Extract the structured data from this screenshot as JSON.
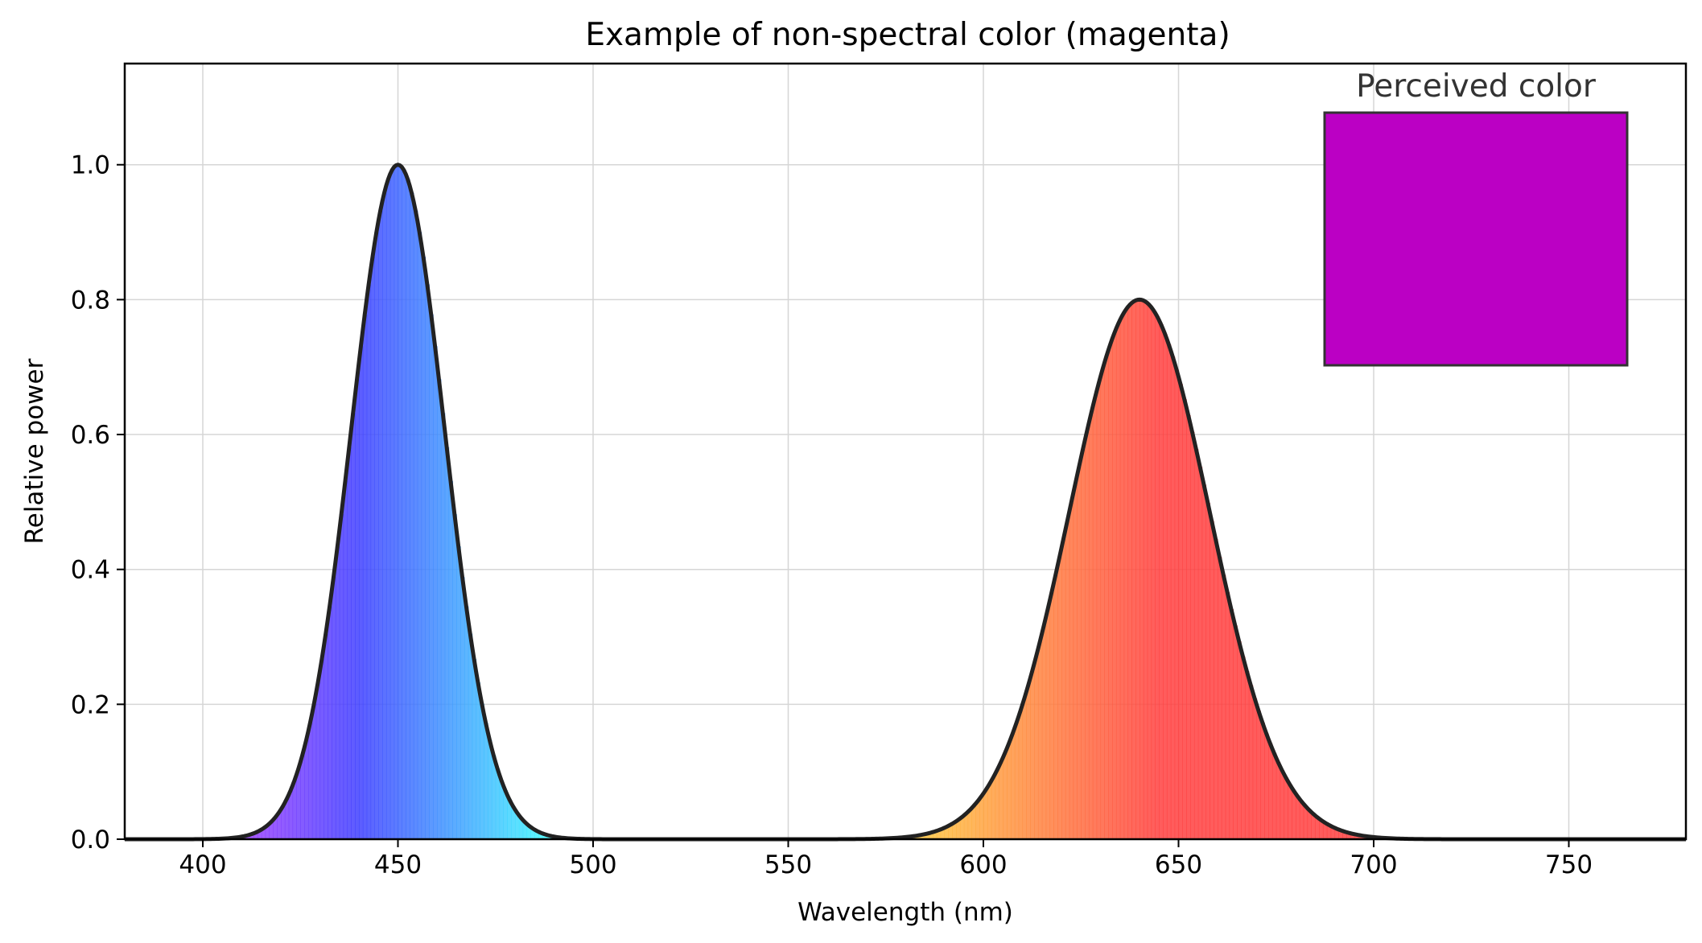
{
  "chart_data": {
    "type": "area",
    "title": "Example of non-spectral color (magenta)",
    "xlabel": "Wavelength (nm)",
    "ylabel": "Relative power",
    "xlim": [
      380,
      780
    ],
    "ylim": [
      0,
      1.15
    ],
    "x_ticks": [
      "400",
      "450",
      "500",
      "550",
      "600",
      "650",
      "700",
      "750"
    ],
    "y_ticks": [
      "0.0",
      "0.2",
      "0.4",
      "0.6",
      "0.8",
      "1.0"
    ],
    "grid": true,
    "series": [
      {
        "peaks": [
          {
            "center": 450,
            "amplitude": 1.0,
            "sigma": 12
          },
          {
            "center": 640,
            "amplitude": 0.8,
            "sigma": 18
          }
        ],
        "x": [
          380,
          400,
          410,
          420,
          430,
          440,
          445,
          450,
          455,
          460,
          470,
          480,
          490,
          500,
          520,
          550,
          580,
          590,
          600,
          610,
          620,
          630,
          635,
          640,
          645,
          650,
          660,
          670,
          680,
          690,
          700,
          720,
          750,
          780
        ],
        "y": [
          0.0,
          0.0,
          0.04,
          0.21,
          0.55,
          0.86,
          0.97,
          1.0,
          0.92,
          0.71,
          0.25,
          0.04,
          0.0,
          0.0,
          0.0,
          0.0,
          0.02,
          0.05,
          0.12,
          0.25,
          0.43,
          0.68,
          0.76,
          0.8,
          0.76,
          0.68,
          0.43,
          0.21,
          0.07,
          0.02,
          0.0,
          0.0,
          0.0,
          0.0
        ]
      }
    ],
    "fill": "spectral colors under curve",
    "line_color": "#222222",
    "annotation": {
      "label": "Perceived color",
      "swatch_color": "#bb00c4",
      "placement": "top-right"
    }
  }
}
